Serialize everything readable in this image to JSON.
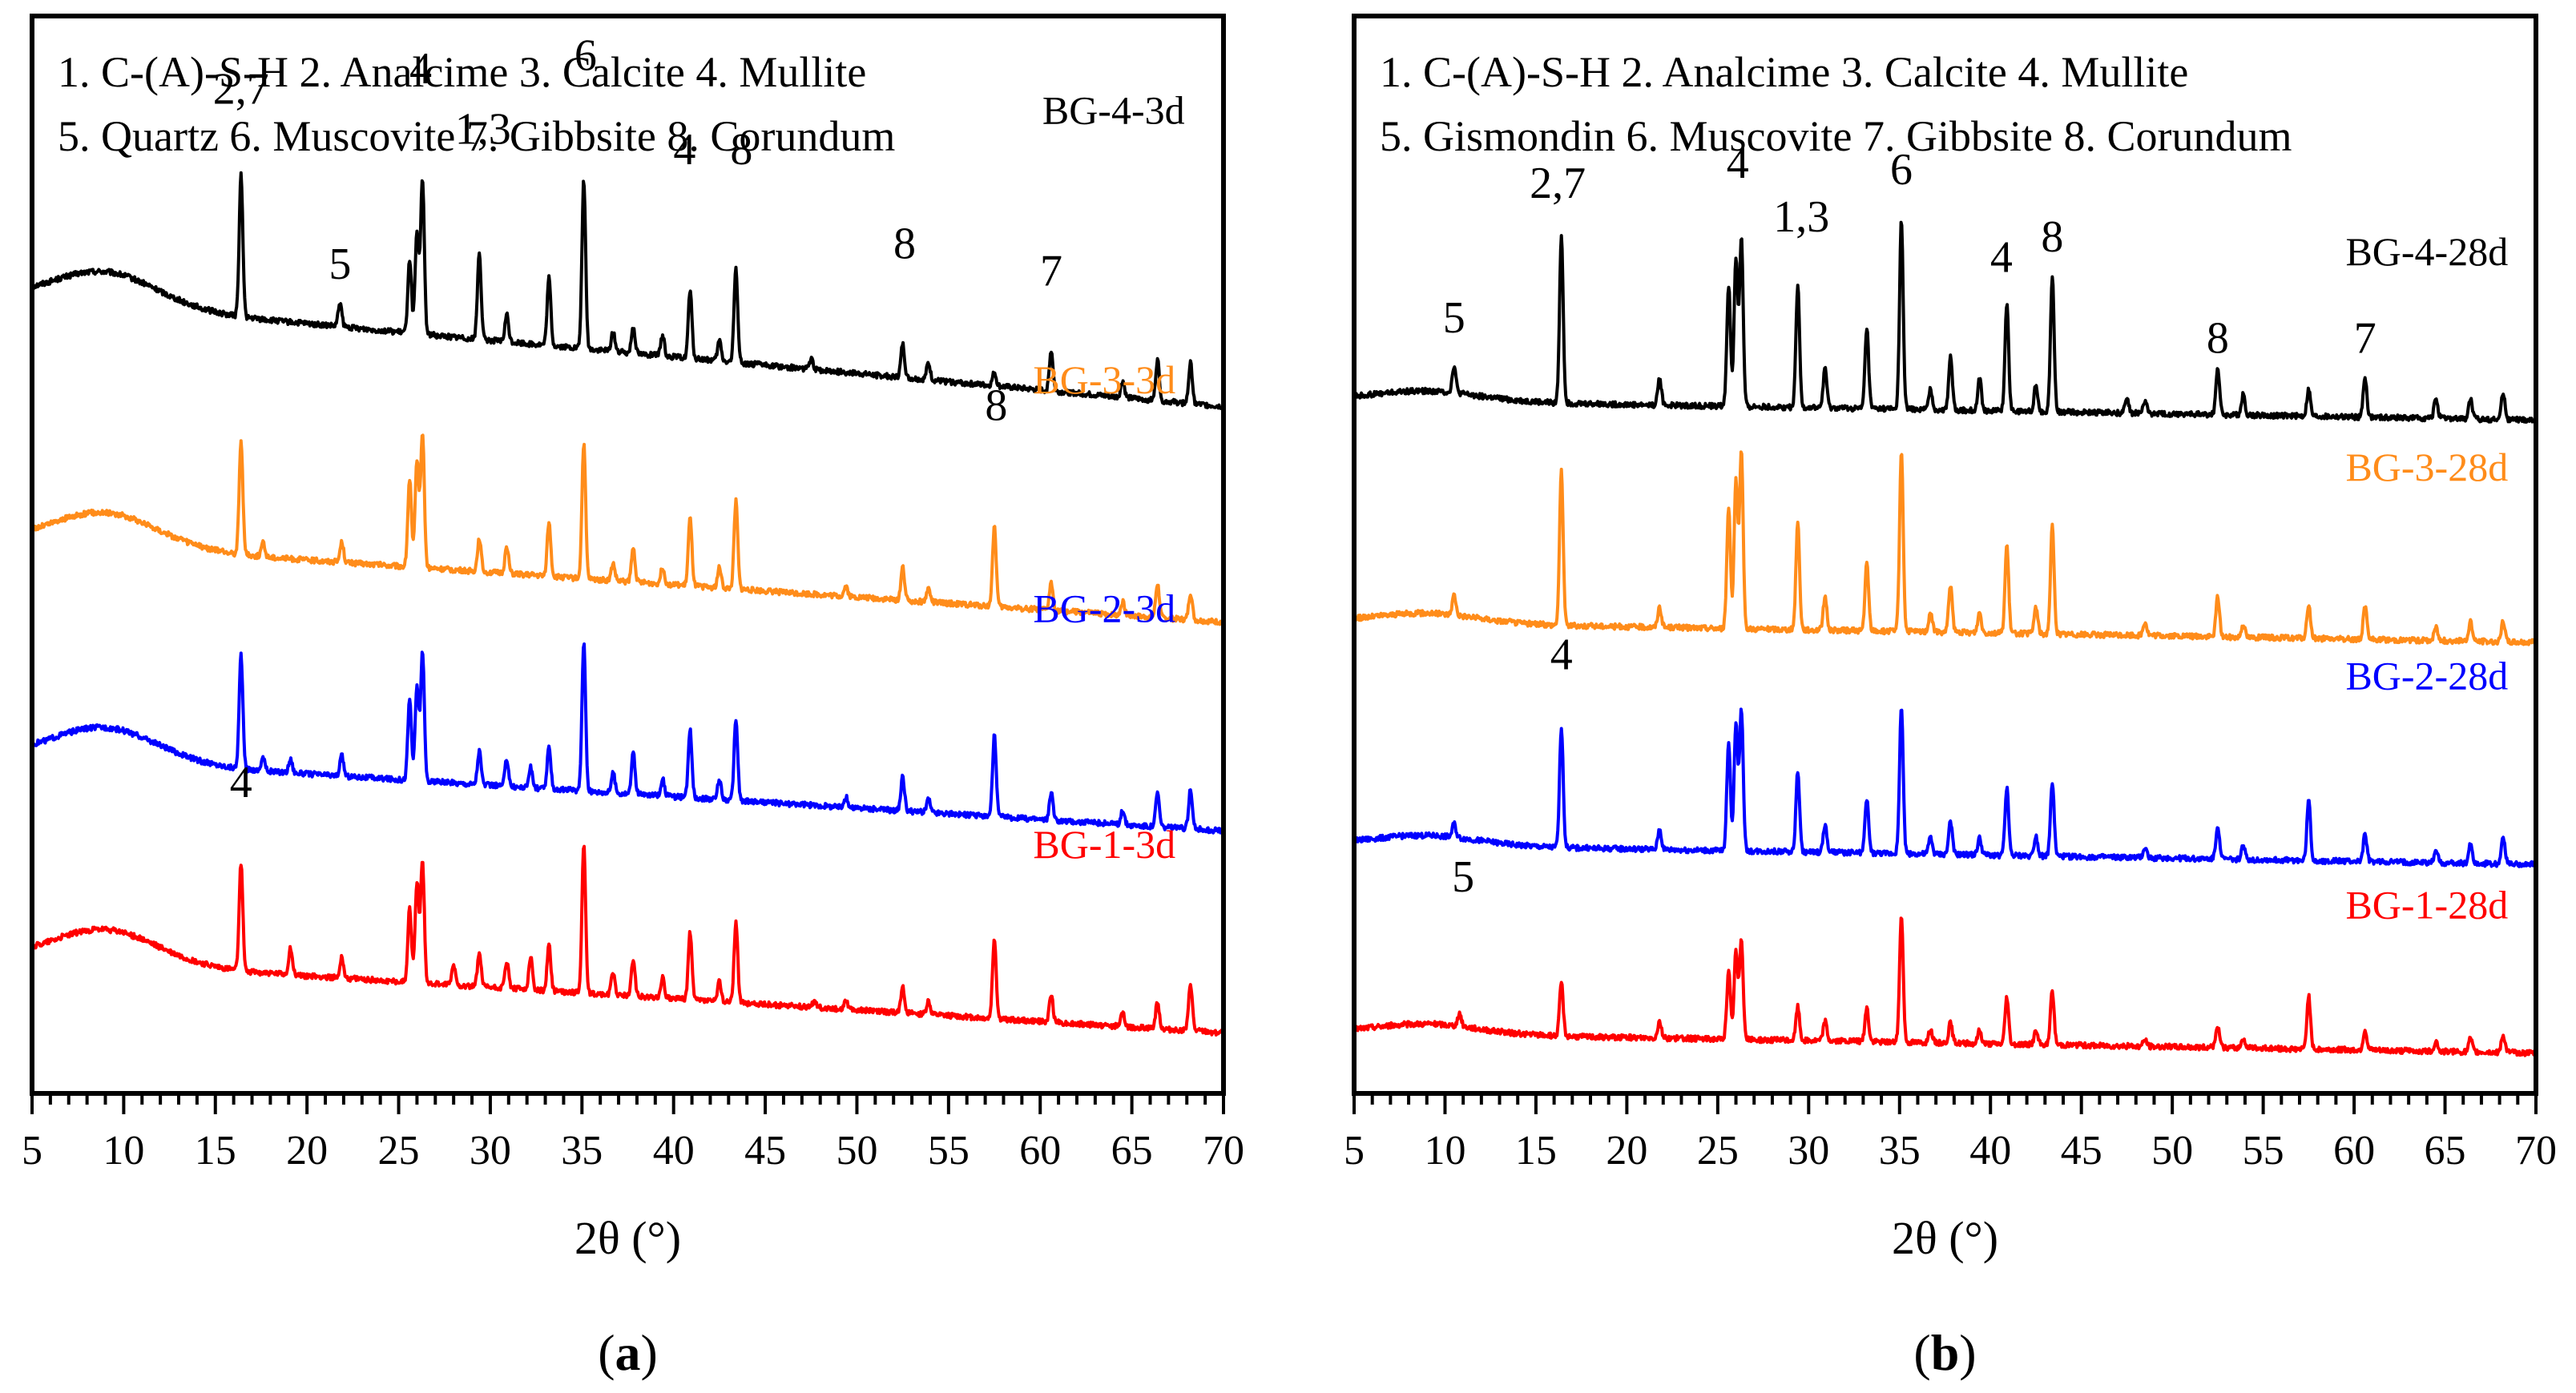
{
  "chart_data": [
    {
      "type": "line",
      "panel_label": "(a)",
      "xlabel": "2θ (°)",
      "ylabel": "",
      "xlim": [
        5,
        70
      ],
      "ylim": [
        0,
        16
      ],
      "xticks": [
        5,
        10,
        15,
        20,
        25,
        30,
        35,
        40,
        45,
        50,
        55,
        60,
        65,
        70
      ],
      "grid": false,
      "legend_lines": [
        "1. C-(A)-S-H  2. Analcime  3. Calcite  4. Mullite",
        "5. Quartz  6. Muscovite  7. Gibbsite  8. Corundum"
      ],
      "series": [
        {
          "name": "BG-4-3d",
          "color": "#000000",
          "base_start": 11.8,
          "base_end": 10.2,
          "hump": 0.5,
          "peaks": [
            [
              16.4,
              2.1
            ],
            [
              21.8,
              0.35
            ],
            [
              25.6,
              1.1
            ],
            [
              26.0,
              1.5
            ],
            [
              26.3,
              2.3
            ],
            [
              29.4,
              1.3
            ],
            [
              30.9,
              0.4
            ],
            [
              33.2,
              1.0
            ],
            [
              35.1,
              2.5
            ],
            [
              36.7,
              0.3
            ],
            [
              37.8,
              0.4
            ],
            [
              39.4,
              0.3
            ],
            [
              40.9,
              1.0
            ],
            [
              42.5,
              0.3
            ],
            [
              43.4,
              1.4
            ],
            [
              47.5,
              0.15
            ],
            [
              52.5,
              0.5
            ],
            [
              53.9,
              0.25
            ],
            [
              57.5,
              0.2
            ],
            [
              60.6,
              0.6
            ],
            [
              64.5,
              0.25
            ],
            [
              66.4,
              0.6
            ],
            [
              68.2,
              0.6
            ]
          ]
        },
        {
          "name": "BG-3-3d",
          "color": "#ff8c1a",
          "base_start": 8.2,
          "base_end": 7.0,
          "hump": 0.5,
          "peaks": [
            [
              16.4,
              1.7
            ],
            [
              17.6,
              0.2
            ],
            [
              21.9,
              0.3
            ],
            [
              25.6,
              1.3
            ],
            [
              26.0,
              1.6
            ],
            [
              26.3,
              2.0
            ],
            [
              29.4,
              0.5
            ],
            [
              30.9,
              0.4
            ],
            [
              33.2,
              0.8
            ],
            [
              35.1,
              2.0
            ],
            [
              36.7,
              0.25
            ],
            [
              37.8,
              0.5
            ],
            [
              39.4,
              0.25
            ],
            [
              40.9,
              1.0
            ],
            [
              42.5,
              0.3
            ],
            [
              43.4,
              1.3
            ],
            [
              49.4,
              0.15
            ],
            [
              52.5,
              0.5
            ],
            [
              53.9,
              0.2
            ],
            [
              57.5,
              1.2
            ],
            [
              60.6,
              0.4
            ],
            [
              64.5,
              0.2
            ],
            [
              66.4,
              0.5
            ],
            [
              68.2,
              0.4
            ]
          ]
        },
        {
          "name": "BG-2-3d",
          "color": "#0000ff",
          "base_start": 5.0,
          "base_end": 3.9,
          "hump": 0.5,
          "peaks": [
            [
              16.4,
              1.7
            ],
            [
              17.6,
              0.2
            ],
            [
              19.1,
              0.2
            ],
            [
              21.9,
              0.3
            ],
            [
              25.6,
              1.2
            ],
            [
              26.0,
              1.4
            ],
            [
              26.3,
              1.9
            ],
            [
              29.4,
              0.5
            ],
            [
              30.9,
              0.4
            ],
            [
              32.2,
              0.3
            ],
            [
              33.2,
              0.6
            ],
            [
              35.1,
              2.2
            ],
            [
              36.7,
              0.3
            ],
            [
              37.8,
              0.6
            ],
            [
              39.4,
              0.25
            ],
            [
              40.9,
              1.0
            ],
            [
              42.5,
              0.3
            ],
            [
              43.4,
              1.2
            ],
            [
              49.4,
              0.15
            ],
            [
              52.5,
              0.5
            ],
            [
              53.9,
              0.2
            ],
            [
              57.5,
              1.2
            ],
            [
              60.6,
              0.4
            ],
            [
              64.5,
              0.2
            ],
            [
              66.4,
              0.5
            ],
            [
              68.2,
              0.6
            ]
          ]
        },
        {
          "name": "BG-1-3d",
          "color": "#ff0000",
          "base_start": 2.0,
          "base_end": 0.9,
          "hump": 0.5,
          "peaks": [
            [
              16.4,
              1.6
            ],
            [
              19.1,
              0.4
            ],
            [
              21.9,
              0.3
            ],
            [
              25.6,
              1.1
            ],
            [
              26.0,
              1.5
            ],
            [
              26.3,
              1.8
            ],
            [
              28.0,
              0.3
            ],
            [
              29.4,
              0.5
            ],
            [
              30.9,
              0.4
            ],
            [
              32.2,
              0.5
            ],
            [
              33.2,
              0.7
            ],
            [
              35.1,
              2.2
            ],
            [
              36.7,
              0.35
            ],
            [
              37.8,
              0.55
            ],
            [
              39.4,
              0.3
            ],
            [
              40.9,
              1.0
            ],
            [
              42.5,
              0.3
            ],
            [
              43.4,
              1.2
            ],
            [
              47.7,
              0.1
            ],
            [
              49.4,
              0.15
            ],
            [
              52.5,
              0.4
            ],
            [
              53.9,
              0.2
            ],
            [
              57.5,
              1.2
            ],
            [
              60.6,
              0.4
            ],
            [
              64.5,
              0.2
            ],
            [
              66.4,
              0.4
            ],
            [
              68.2,
              0.7
            ]
          ]
        }
      ],
      "series_labels": [
        {
          "text": "BG-4-3d",
          "color": "#000000",
          "x": 64.0,
          "y": 14.4
        },
        {
          "text": "BG-3-3d",
          "color": "#ff8c1a",
          "x": 63.5,
          "y": 10.4
        },
        {
          "text": "BG-2-3d",
          "color": "#0000ff",
          "x": 63.5,
          "y": 7.0
        },
        {
          "text": "BG-1-3d",
          "color": "#ff0000",
          "x": 63.5,
          "y": 3.5
        }
      ],
      "annotations": [
        {
          "text": "2,7",
          "x": 16.4,
          "y": 14.7
        },
        {
          "text": "5",
          "x": 21.8,
          "y": 12.1
        },
        {
          "text": "4",
          "x": 26.2,
          "y": 15.0
        },
        {
          "text": "1,3",
          "x": 29.6,
          "y": 14.1
        },
        {
          "text": "6",
          "x": 35.2,
          "y": 15.2
        },
        {
          "text": "4",
          "x": 40.6,
          "y": 13.8
        },
        {
          "text": "8",
          "x": 43.7,
          "y": 13.8
        },
        {
          "text": "8",
          "x": 52.6,
          "y": 12.4
        },
        {
          "text": "7",
          "x": 60.6,
          "y": 12.0
        },
        {
          "text": "8",
          "x": 57.6,
          "y": 10.0
        },
        {
          "text": "4",
          "x": 16.4,
          "y": 4.4
        }
      ]
    },
    {
      "type": "line",
      "panel_label": "(b)",
      "xlabel": "2θ (°)",
      "ylabel": "",
      "xlim": [
        5,
        70
      ],
      "ylim": [
        0,
        16
      ],
      "xticks": [
        5,
        10,
        15,
        20,
        25,
        30,
        35,
        40,
        45,
        50,
        55,
        60,
        65,
        70
      ],
      "grid": false,
      "legend_lines": [
        "1. C-(A)-S-H  2. Analcime  3. Calcite  4. Mullite",
        "5. Gismondin  6. Muscovite 7. Gibbsite 8. Corundum"
      ],
      "series": [
        {
          "name": "BG-4-28d",
          "color": "#000000",
          "base_start": 10.3,
          "base_end": 10.0,
          "hump": 0.15,
          "peaks": [
            [
              10.5,
              0.4
            ],
            [
              16.4,
              2.5
            ],
            [
              21.8,
              0.4
            ],
            [
              25.6,
              1.8
            ],
            [
              26.0,
              2.2
            ],
            [
              26.3,
              2.5
            ],
            [
              29.4,
              1.8
            ],
            [
              30.9,
              0.6
            ],
            [
              33.2,
              1.2
            ],
            [
              35.1,
              2.8
            ],
            [
              36.7,
              0.3
            ],
            [
              37.8,
              0.8
            ],
            [
              39.4,
              0.5
            ],
            [
              40.9,
              1.6
            ],
            [
              42.5,
              0.4
            ],
            [
              43.4,
              2.0
            ],
            [
              47.5,
              0.2
            ],
            [
              48.5,
              0.2
            ],
            [
              52.5,
              0.7
            ],
            [
              53.9,
              0.3
            ],
            [
              57.5,
              0.4
            ],
            [
              60.6,
              0.6
            ],
            [
              64.5,
              0.3
            ],
            [
              66.4,
              0.3
            ],
            [
              68.2,
              0.4
            ]
          ]
        },
        {
          "name": "BG-3-28d",
          "color": "#ff8c1a",
          "base_start": 7.0,
          "base_end": 6.7,
          "hump": 0.15,
          "peaks": [
            [
              10.5,
              0.3
            ],
            [
              16.4,
              2.3
            ],
            [
              21.8,
              0.3
            ],
            [
              25.6,
              1.8
            ],
            [
              26.0,
              2.2
            ],
            [
              26.3,
              2.6
            ],
            [
              29.4,
              1.6
            ],
            [
              30.9,
              0.5
            ],
            [
              33.2,
              1.0
            ],
            [
              35.1,
              2.7
            ],
            [
              36.7,
              0.3
            ],
            [
              37.8,
              0.7
            ],
            [
              39.4,
              0.3
            ],
            [
              40.9,
              1.3
            ],
            [
              42.5,
              0.4
            ],
            [
              43.4,
              1.6
            ],
            [
              48.5,
              0.2
            ],
            [
              52.5,
              0.6
            ],
            [
              53.9,
              0.2
            ],
            [
              57.5,
              0.5
            ],
            [
              60.6,
              0.5
            ],
            [
              64.5,
              0.2
            ],
            [
              66.4,
              0.3
            ],
            [
              68.2,
              0.3
            ]
          ]
        },
        {
          "name": "BG-2-28d",
          "color": "#0000ff",
          "base_start": 3.7,
          "base_end": 3.4,
          "hump": 0.15,
          "peaks": [
            [
              10.5,
              0.2
            ],
            [
              16.4,
              1.8
            ],
            [
              21.8,
              0.3
            ],
            [
              25.6,
              1.6
            ],
            [
              26.0,
              1.9
            ],
            [
              26.3,
              2.1
            ],
            [
              29.4,
              1.2
            ],
            [
              30.9,
              0.4
            ],
            [
              33.2,
              0.8
            ],
            [
              35.1,
              2.2
            ],
            [
              36.7,
              0.25
            ],
            [
              37.8,
              0.5
            ],
            [
              39.4,
              0.25
            ],
            [
              40.9,
              1.0
            ],
            [
              42.5,
              0.3
            ],
            [
              43.4,
              1.1
            ],
            [
              48.5,
              0.15
            ],
            [
              52.5,
              0.5
            ],
            [
              53.9,
              0.2
            ],
            [
              57.5,
              0.9
            ],
            [
              60.6,
              0.4
            ],
            [
              64.5,
              0.2
            ],
            [
              66.4,
              0.3
            ],
            [
              68.2,
              0.4
            ]
          ]
        },
        {
          "name": "BG-1-28d",
          "color": "#ff0000",
          "base_start": 0.9,
          "base_end": 0.6,
          "hump": 0.15,
          "peaks": [
            [
              10.8,
              0.2
            ],
            [
              16.4,
              0.8
            ],
            [
              21.8,
              0.25
            ],
            [
              25.6,
              1.0
            ],
            [
              26.0,
              1.3
            ],
            [
              26.3,
              1.5
            ],
            [
              29.4,
              0.5
            ],
            [
              30.9,
              0.3
            ],
            [
              33.2,
              0.5
            ],
            [
              35.1,
              1.9
            ],
            [
              36.7,
              0.2
            ],
            [
              37.8,
              0.3
            ],
            [
              39.4,
              0.2
            ],
            [
              40.9,
              0.7
            ],
            [
              42.5,
              0.2
            ],
            [
              43.4,
              0.8
            ],
            [
              48.5,
              0.1
            ],
            [
              52.5,
              0.3
            ],
            [
              53.9,
              0.15
            ],
            [
              57.5,
              0.8
            ],
            [
              60.6,
              0.3
            ],
            [
              64.5,
              0.15
            ],
            [
              66.4,
              0.2
            ],
            [
              68.2,
              0.25
            ]
          ]
        }
      ],
      "series_labels": [
        {
          "text": "BG-4-28d",
          "color": "#000000",
          "x": 64.0,
          "y": 12.3
        },
        {
          "text": "BG-3-28d",
          "color": "#ff8c1a",
          "x": 64.0,
          "y": 9.1
        },
        {
          "text": "BG-2-28d",
          "color": "#0000ff",
          "x": 64.0,
          "y": 6.0
        },
        {
          "text": "BG-1-28d",
          "color": "#ff0000",
          "x": 64.0,
          "y": 2.6
        }
      ],
      "annotations": [
        {
          "text": "5",
          "x": 10.5,
          "y": 11.3
        },
        {
          "text": "2,7",
          "x": 16.2,
          "y": 13.3
        },
        {
          "text": "4",
          "x": 26.1,
          "y": 13.6
        },
        {
          "text": "1,3",
          "x": 29.6,
          "y": 12.8
        },
        {
          "text": "6",
          "x": 35.1,
          "y": 13.5
        },
        {
          "text": "4",
          "x": 40.6,
          "y": 12.2
        },
        {
          "text": "8",
          "x": 43.4,
          "y": 12.5
        },
        {
          "text": "8",
          "x": 52.5,
          "y": 11.0
        },
        {
          "text": "7",
          "x": 60.6,
          "y": 11.0
        },
        {
          "text": "4",
          "x": 16.4,
          "y": 6.3
        },
        {
          "text": "5",
          "x": 11.0,
          "y": 3.0
        }
      ]
    }
  ]
}
